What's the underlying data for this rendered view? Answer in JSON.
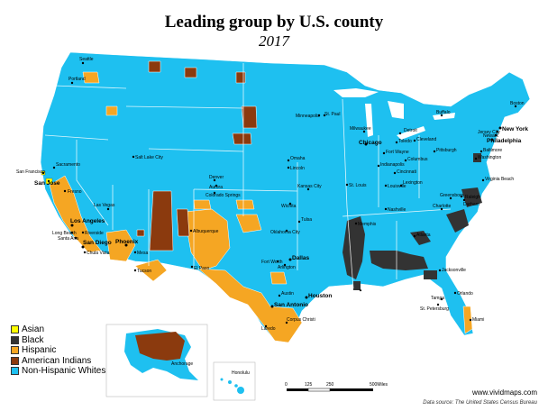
{
  "title": "Leading group by U.S. county",
  "year": "2017",
  "colors": {
    "asian": "#ffff00",
    "black": "#333333",
    "hispanic": "#f5a623",
    "american_indian": "#8b3a0e",
    "white": "#1ec0f0",
    "border": "#ffffff"
  },
  "legend": [
    {
      "label": "Asian",
      "color": "#ffff00"
    },
    {
      "label": "Black",
      "color": "#333333"
    },
    {
      "label": "Hispanic",
      "color": "#f5a623"
    },
    {
      "label": "American Indians",
      "color": "#8b3a0e"
    },
    {
      "label": "Non-Hispanic Whites",
      "color": "#1ec0f0"
    }
  ],
  "website": "www.vividmaps.com",
  "source": "Data source: The United States Census Bureau",
  "scale": {
    "labels": [
      "0",
      "125",
      "250",
      "500Miles"
    ]
  },
  "inset_labels": {
    "honolulu": "Honolulu",
    "anchorage": "Anchorage"
  },
  "cities": {
    "seattle": "Seattle",
    "portland": "Portland",
    "san_francisco": "San Francisco",
    "san_jose": "San Jose",
    "sacramento": "Sacramento",
    "fresno": "Fresno",
    "los_angeles": "Los Angeles",
    "long_beach": "Long Beach",
    "santa_ana": "Santa Ana",
    "riverside": "Riverside",
    "san_diego": "San Diego",
    "chula_vista": "Chula Vista",
    "las_vegas": "Las Vegas",
    "phoenix": "Phoenix",
    "mesa": "Mesa",
    "tucson": "Tucson",
    "el_paso": "El Paso",
    "albuquerque": "Albuquerque",
    "salt_lake_city": "Salt Lake City",
    "denver": "Denver",
    "aurora": "Aurora",
    "colorado_springs": "Colorado Springs",
    "omaha": "Omaha",
    "lincoln": "Lincoln",
    "kansas_city": "Kansas City",
    "wichita": "Wichita",
    "oklahoma_city": "Oklahoma City",
    "tulsa": "Tulsa",
    "fort_worth": "Fort Worth",
    "arlington": "Arlington",
    "dallas": "Dallas",
    "austin": "Austin",
    "san_antonio": "San Antonio",
    "houston": "Houston",
    "corpus_christi": "Corpus Christi",
    "laredo": "Laredo",
    "minneapolis": "Minneapolis",
    "st_paul": "St. Paul",
    "milwaukee": "Milwaukee",
    "chicago": "Chicago",
    "detroit": "Detroit",
    "toledo": "Toledo",
    "cleveland": "Cleveland",
    "fort_wayne": "Fort Wayne",
    "indianapolis": "Indianapolis",
    "columbus": "Columbus",
    "cincinnati": "Cincinnati",
    "st_louis": "St. Louis",
    "louisville": "Louisville",
    "lexington": "Lexington",
    "memphis": "Memphis",
    "nashville": "Nashville",
    "new_orleans": "New Orleans",
    "atlanta": "Atlanta",
    "jacksonville": "Jacksonville",
    "orlando": "Orlando",
    "tampa": "Tampa",
    "st_petersburg": "St. Petersburg",
    "miami": "Miami",
    "charlotte": "Charlotte",
    "greensboro": "Greensboro",
    "raleigh": "Raleigh",
    "durham": "Durham",
    "virginia_beach": "Virginia Beach",
    "washington": "Washington",
    "baltimore": "Baltimore",
    "philadelphia": "Philadelphia",
    "new_york": "New York",
    "jersey_city": "Jersey City",
    "newark": "Newark",
    "boston": "Boston",
    "buffalo": "Buffalo",
    "pittsburgh": "Pittsburgh"
  }
}
